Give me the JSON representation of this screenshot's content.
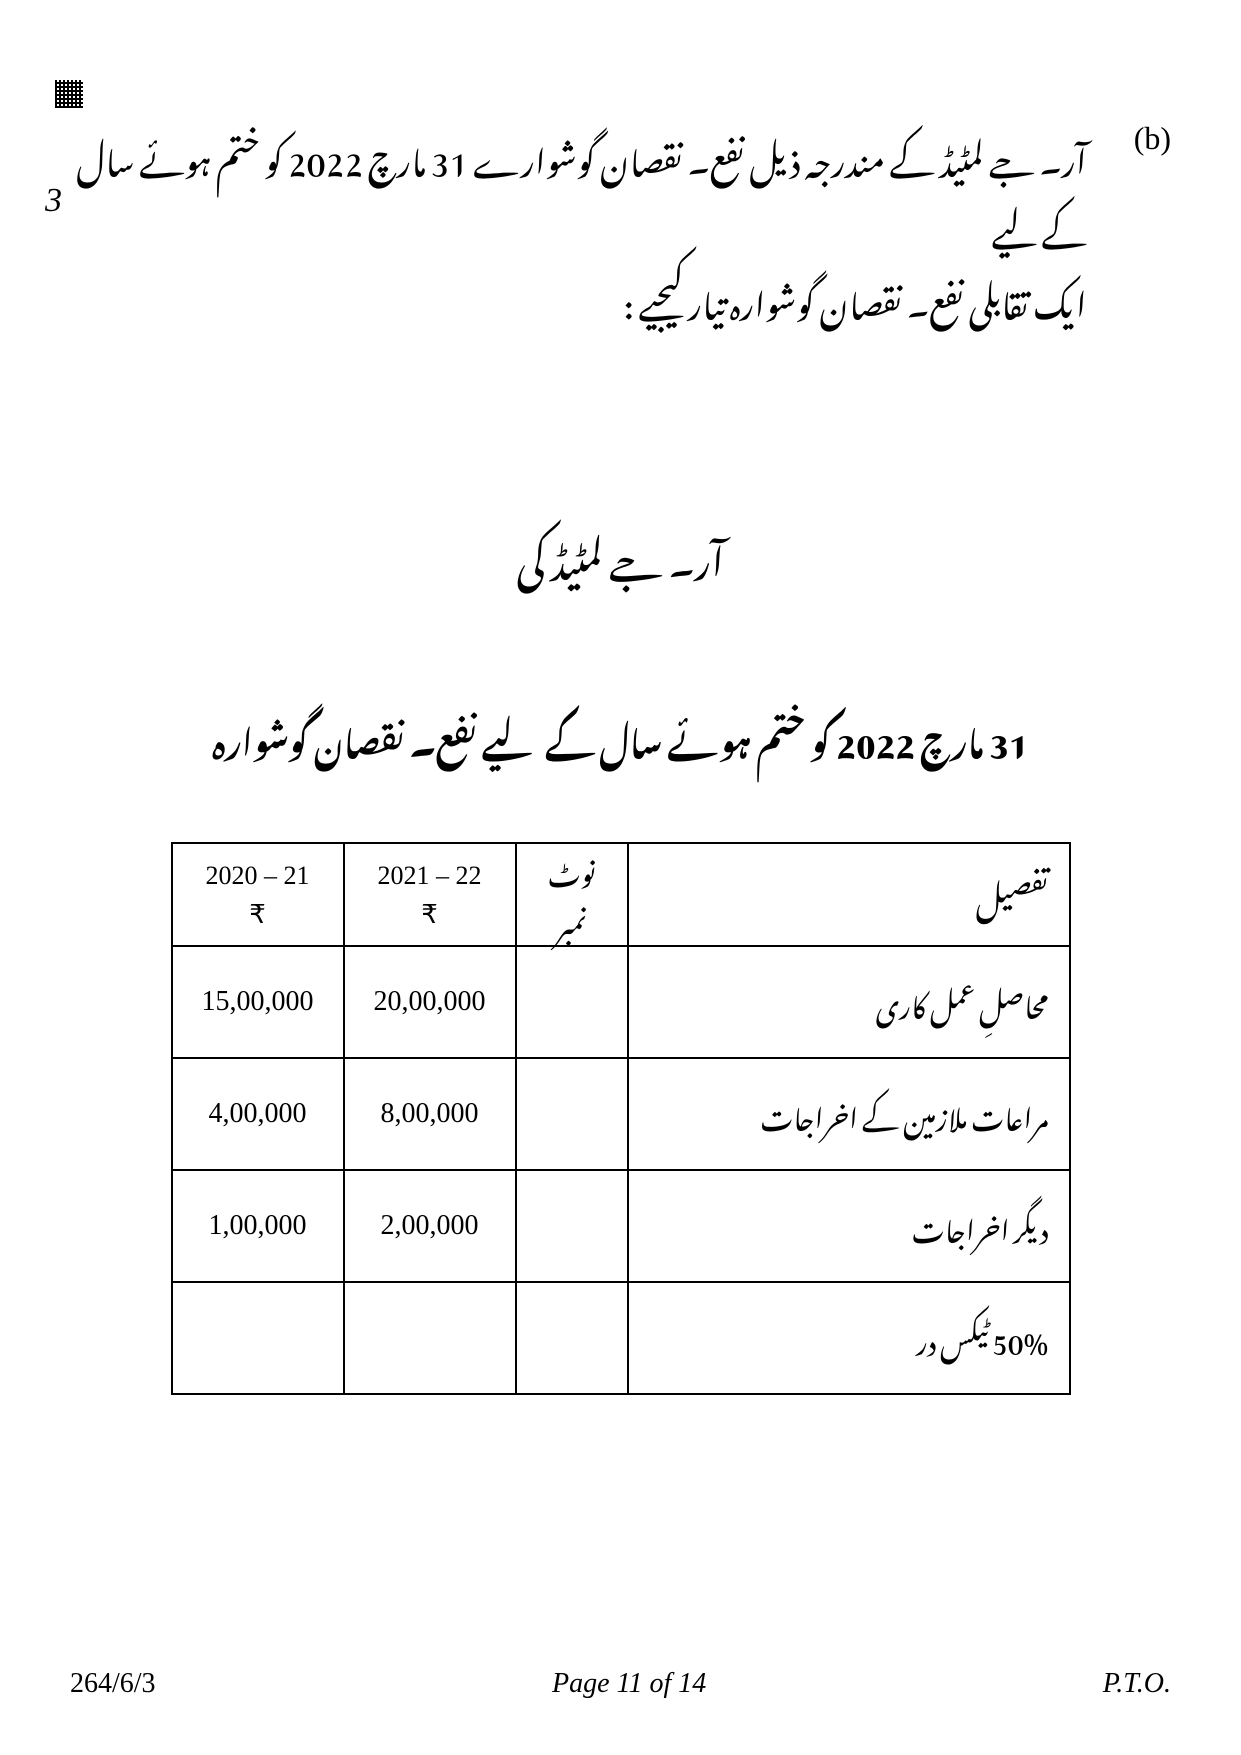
{
  "question": {
    "label": "(b)",
    "text_line1": "آر۔ جے لمٹیڈ کے مندرجہ ذیل نفع۔ نقصان گوشوارے 31 مارچ 2022 کو ختم ہوئے سال کے لیے",
    "text_line2": "ایک تقابلی نفع۔ نقصان گوشوارہ تیار کیجیے  :",
    "marks": "3"
  },
  "headings": {
    "company": "آر۔ جے لمٹیڈ کی",
    "statement": "31 مارچ 2022 کو ختم ہوئے سال کے لیے نفع۔ نقصان گوشوارہ"
  },
  "table": {
    "headers": {
      "particulars": "تفصیل",
      "note_no_line1": "نوٹ",
      "note_no_line2": "نمبر",
      "year_current": "2021 – 22",
      "year_prev": "2020 – 21",
      "currency": "₹"
    },
    "rows": [
      {
        "particulars": "محاصلِ عمل کاری",
        "note": "",
        "current": "20,00,000",
        "prev": "15,00,000"
      },
      {
        "particulars": "مراعات ملازمین کے اخراجات",
        "note": "",
        "current": "8,00,000",
        "prev": "4,00,000"
      },
      {
        "particulars": "دیگر اخراجات",
        "note": "",
        "current": "2,00,000",
        "prev": "1,00,000"
      },
      {
        "particulars": "50% ٹیکس در",
        "note": "",
        "current": "",
        "prev": ""
      }
    ]
  },
  "footer": {
    "code": "264/6/3",
    "page": "Page 11 of 14",
    "pto": "P.T.O."
  }
}
